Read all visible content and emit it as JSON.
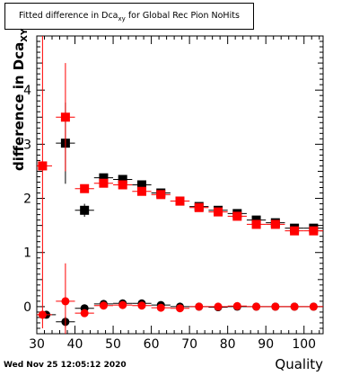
{
  "title": {
    "prefix": "Fitted difference in Dca",
    "sub": "xy",
    "suffix": " for Global Rec Pion NoHits"
  },
  "timestamp": "Wed Nov 25 12:05:12 2020",
  "chart_data": {
    "type": "scatter",
    "xlabel": "Quality",
    "ylabel_main": "difference in Dca",
    "ylabel_sub": "XY",
    "xlim": [
      30,
      105
    ],
    "ylim": [
      -0.5,
      5.0
    ],
    "x_ticks": [
      30,
      40,
      50,
      60,
      70,
      80,
      90,
      100
    ],
    "y_ticks": [
      0,
      1,
      2,
      3,
      4
    ],
    "series": [
      {
        "marker": "square",
        "color": "#000000",
        "points": [
          {
            "x": 37.5,
            "y": 3.02,
            "yerr": 0.75
          },
          {
            "x": 42.5,
            "y": 1.78,
            "yerr": 0.12
          },
          {
            "x": 47.5,
            "y": 2.38,
            "yerr": 0.05
          },
          {
            "x": 52.5,
            "y": 2.35,
            "yerr": 0.04
          },
          {
            "x": 57.5,
            "y": 2.25,
            "yerr": 0.03
          },
          {
            "x": 62.5,
            "y": 2.1,
            "yerr": 0.03
          },
          {
            "x": 67.5,
            "y": 1.95,
            "yerr": 0.03
          },
          {
            "x": 72.5,
            "y": 1.85,
            "yerr": 0.03
          },
          {
            "x": 77.5,
            "y": 1.78,
            "yerr": 0.03
          },
          {
            "x": 82.5,
            "y": 1.72,
            "yerr": 0.03
          },
          {
            "x": 87.5,
            "y": 1.6,
            "yerr": 0.03
          },
          {
            "x": 92.5,
            "y": 1.55,
            "yerr": 0.03
          },
          {
            "x": 97.5,
            "y": 1.45,
            "yerr": 0.03
          },
          {
            "x": 102.5,
            "y": 1.45,
            "yerr": 0.03
          }
        ]
      },
      {
        "marker": "square",
        "color": "#ff0000",
        "points": [
          {
            "x": 37.5,
            "y": 3.5,
            "yerr": 1.0
          },
          {
            "x": 42.5,
            "y": 2.18,
            "yerr": 0.06
          },
          {
            "x": 47.5,
            "y": 2.28,
            "yerr": 0.04
          },
          {
            "x": 52.5,
            "y": 2.25,
            "yerr": 0.03
          },
          {
            "x": 57.5,
            "y": 2.13,
            "yerr": 0.03
          },
          {
            "x": 62.5,
            "y": 2.07,
            "yerr": 0.03
          },
          {
            "x": 67.5,
            "y": 1.95,
            "yerr": 0.03
          },
          {
            "x": 72.5,
            "y": 1.83,
            "yerr": 0.03
          },
          {
            "x": 77.5,
            "y": 1.75,
            "yerr": 0.03
          },
          {
            "x": 82.5,
            "y": 1.67,
            "yerr": 0.03
          },
          {
            "x": 87.5,
            "y": 1.52,
            "yerr": 0.03
          },
          {
            "x": 92.5,
            "y": 1.52,
            "yerr": 0.03
          },
          {
            "x": 97.5,
            "y": 1.4,
            "yerr": 0.03
          },
          {
            "x": 102.5,
            "y": 1.4,
            "yerr": 0.03
          }
        ]
      },
      {
        "marker": "square",
        "color": "#ff0000",
        "points": [
          {
            "x": 31.5,
            "y": 2.6,
            "yerr": 3.0
          }
        ]
      },
      {
        "marker": "circle",
        "color": "#000000",
        "points": [
          {
            "x": 32.5,
            "y": -0.15,
            "yerr": 0.05
          },
          {
            "x": 37.5,
            "y": -0.28,
            "yerr": 0.1
          },
          {
            "x": 42.5,
            "y": -0.03,
            "yerr": 0.05
          },
          {
            "x": 47.5,
            "y": 0.05,
            "yerr": 0.03
          },
          {
            "x": 52.5,
            "y": 0.06,
            "yerr": 0.02
          },
          {
            "x": 57.5,
            "y": 0.06,
            "yerr": 0.02
          },
          {
            "x": 62.5,
            "y": 0.03,
            "yerr": 0.02
          },
          {
            "x": 67.5,
            "y": 0.0,
            "yerr": 0.02
          },
          {
            "x": 72.5,
            "y": 0.0,
            "yerr": 0.02
          },
          {
            "x": 77.5,
            "y": -0.01,
            "yerr": 0.02
          },
          {
            "x": 82.5,
            "y": 0.0,
            "yerr": 0.02
          },
          {
            "x": 87.5,
            "y": 0.0,
            "yerr": 0.02
          },
          {
            "x": 92.5,
            "y": 0.0,
            "yerr": 0.02
          },
          {
            "x": 97.5,
            "y": 0.0,
            "yerr": 0.02
          },
          {
            "x": 102.5,
            "y": 0.0,
            "yerr": 0.02
          }
        ]
      },
      {
        "marker": "circle",
        "color": "#ff0000",
        "points": [
          {
            "x": 37.5,
            "y": 0.1,
            "yerr": 0.7
          },
          {
            "x": 42.5,
            "y": -0.12,
            "yerr": 0.04
          },
          {
            "x": 47.5,
            "y": 0.02,
            "yerr": 0.02
          },
          {
            "x": 52.5,
            "y": 0.03,
            "yerr": 0.02
          },
          {
            "x": 57.5,
            "y": 0.02,
            "yerr": 0.02
          },
          {
            "x": 62.5,
            "y": -0.02,
            "yerr": 0.02
          },
          {
            "x": 67.5,
            "y": -0.03,
            "yerr": 0.02
          },
          {
            "x": 72.5,
            "y": 0.0,
            "yerr": 0.02
          },
          {
            "x": 77.5,
            "y": 0.0,
            "yerr": 0.02
          },
          {
            "x": 82.5,
            "y": 0.01,
            "yerr": 0.02
          },
          {
            "x": 87.5,
            "y": 0.0,
            "yerr": 0.02
          },
          {
            "x": 92.5,
            "y": 0.0,
            "yerr": 0.02
          },
          {
            "x": 97.5,
            "y": 0.0,
            "yerr": 0.02
          },
          {
            "x": 102.5,
            "y": 0.0,
            "yerr": 0.02
          }
        ]
      },
      {
        "marker": "circle",
        "color": "#ff0000",
        "points": [
          {
            "x": 31.5,
            "y": -0.15,
            "yerr": 0.05
          }
        ]
      }
    ]
  }
}
